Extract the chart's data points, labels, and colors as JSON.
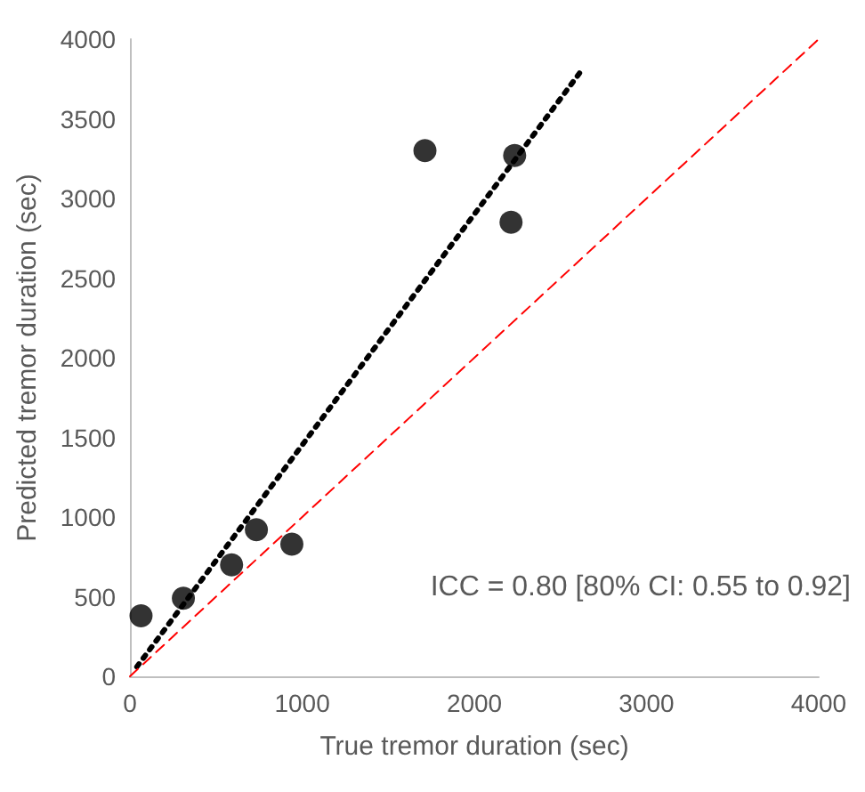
{
  "chart_data": {
    "type": "scatter",
    "xlabel": "True tremor duration (sec)",
    "ylabel": "Predicted tremor duration (sec)",
    "annotations": [
      "ICC = 0.80 [80% CI: 0.55 to 0.92]"
    ],
    "series": [
      {
        "color": "#000000",
        "marker": "circle",
        "x": [
          64,
          310,
          590,
          734,
          940,
          1713,
          2213,
          2234
        ],
        "values": [
          380,
          490,
          700,
          920,
          830,
          3300,
          2850,
          3270
        ]
      },
      {
        "type": "line",
        "color": "#000000",
        "line_style": "dotted",
        "marker": "none",
        "x": [
          40,
          2620
        ],
        "values": [
          60,
          3800
        ]
      },
      {
        "type": "line",
        "color": "#ff0000",
        "line_style": "dashed",
        "marker": "none",
        "x": [
          0,
          4000
        ],
        "values": [
          0,
          4000
        ]
      }
    ],
    "xlim": [
      0,
      4000
    ],
    "xticks": [
      0,
      1000,
      2000,
      3000,
      4000
    ],
    "ylim": [
      0,
      4000
    ],
    "yticks": [
      0,
      500,
      1000,
      1500,
      2000,
      2500,
      3000,
      3500,
      4000
    ],
    "grid": false
  }
}
